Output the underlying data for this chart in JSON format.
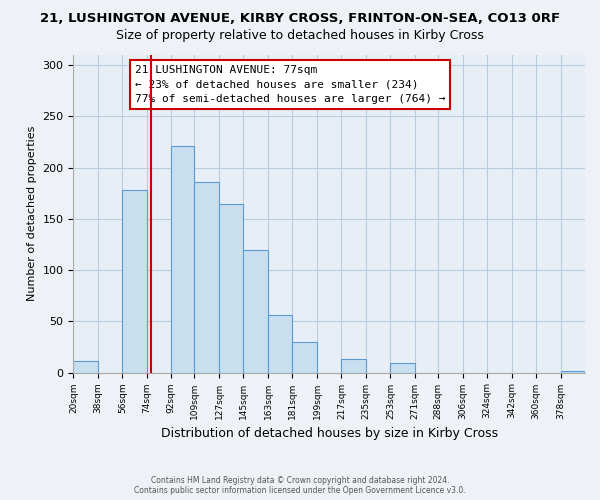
{
  "title": "21, LUSHINGTON AVENUE, KIRBY CROSS, FRINTON-ON-SEA, CO13 0RF",
  "subtitle": "Size of property relative to detached houses in Kirby Cross",
  "xlabel": "Distribution of detached houses by size in Kirby Cross",
  "ylabel": "Number of detached properties",
  "bin_labels": [
    "20sqm",
    "38sqm",
    "56sqm",
    "74sqm",
    "92sqm",
    "109sqm",
    "127sqm",
    "145sqm",
    "163sqm",
    "181sqm",
    "199sqm",
    "217sqm",
    "235sqm",
    "253sqm",
    "271sqm",
    "288sqm",
    "306sqm",
    "324sqm",
    "342sqm",
    "360sqm",
    "378sqm"
  ],
  "bar_heights": [
    11,
    0,
    178,
    0,
    221,
    186,
    165,
    120,
    56,
    30,
    0,
    13,
    0,
    9,
    0,
    0,
    0,
    0,
    0,
    0,
    2
  ],
  "bar_color": "#c8dff0",
  "bar_edge_color": "#5b9bd5",
  "ylim": [
    0,
    310
  ],
  "yticks": [
    0,
    50,
    100,
    150,
    200,
    250,
    300
  ],
  "bin_edges": [
    20,
    38,
    56,
    74,
    92,
    109,
    127,
    145,
    163,
    181,
    199,
    217,
    235,
    253,
    271,
    288,
    306,
    324,
    342,
    360,
    378,
    396
  ],
  "annotation_title": "21 LUSHINGTON AVENUE: 77sqm",
  "annotation_line1": "← 23% of detached houses are smaller (234)",
  "annotation_line2": "77% of semi-detached houses are larger (764) →",
  "footer1": "Contains HM Land Registry data © Crown copyright and database right 2024.",
  "footer2": "Contains public sector information licensed under the Open Government Licence v3.0.",
  "background_color": "#eef2f7",
  "plot_bg_color": "#e8eef6",
  "grid_color": "#b8cce0",
  "title_fontsize": 9.5,
  "subtitle_fontsize": 9,
  "xlabel_fontsize": 9,
  "ylabel_fontsize": 8,
  "annotation_box_color": "#ffffff",
  "annotation_box_edge": "#cc0000",
  "property_line_color": "#cc0000",
  "property_value": 77
}
